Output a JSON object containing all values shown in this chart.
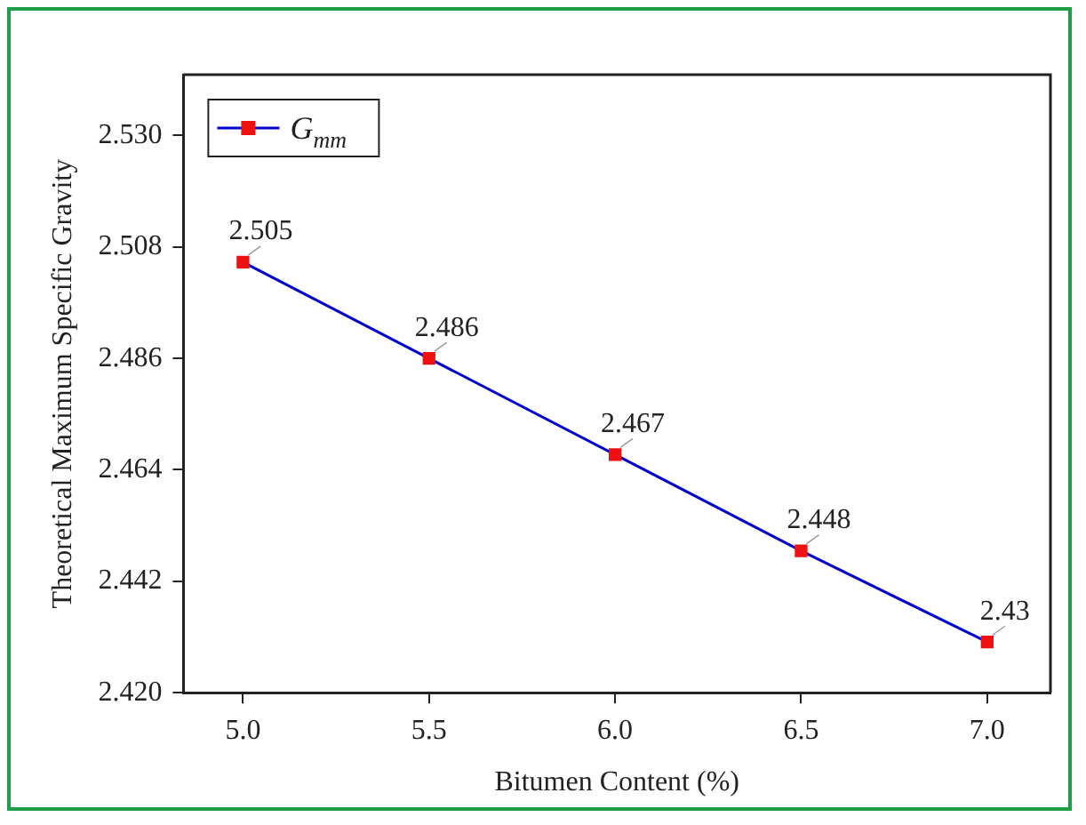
{
  "chart_data": {
    "type": "line",
    "xlabel": "Bitumen Content (%)",
    "ylabel": "Theoretical Maximum Specific Gravity",
    "x": [
      5.0,
      5.5,
      6.0,
      6.5,
      7.0
    ],
    "series": [
      {
        "name": "G$_{mm}$",
        "color": "#0000cc",
        "colors": [
          "#ee1111",
          "#ee1111",
          "#ee1111",
          "#ee1111",
          "#ee1111"
        ],
        "values": [
          2.505,
          2.486,
          2.467,
          2.448,
          2.43
        ]
      }
    ],
    "xlim": [
      4.84,
      7.17
    ],
    "xticks": [
      {
        "value": 5,
        "label": "5.0"
      },
      5.5,
      {
        "value": 6,
        "label": "6.0"
      },
      6.5,
      {
        "value": 7,
        "label": "7.0"
      }
    ],
    "ylim": [
      2.42,
      2.542
    ],
    "yticks": [
      {
        "value": 2.42,
        "label": "2.420"
      },
      2.442,
      2.464,
      2.486,
      2.508,
      {
        "value": 2.53,
        "label": "2.530"
      }
    ],
    "grid": false,
    "legend": "top left",
    "marker": "square",
    "line_style": "solid",
    "data_labels": true
  }
}
